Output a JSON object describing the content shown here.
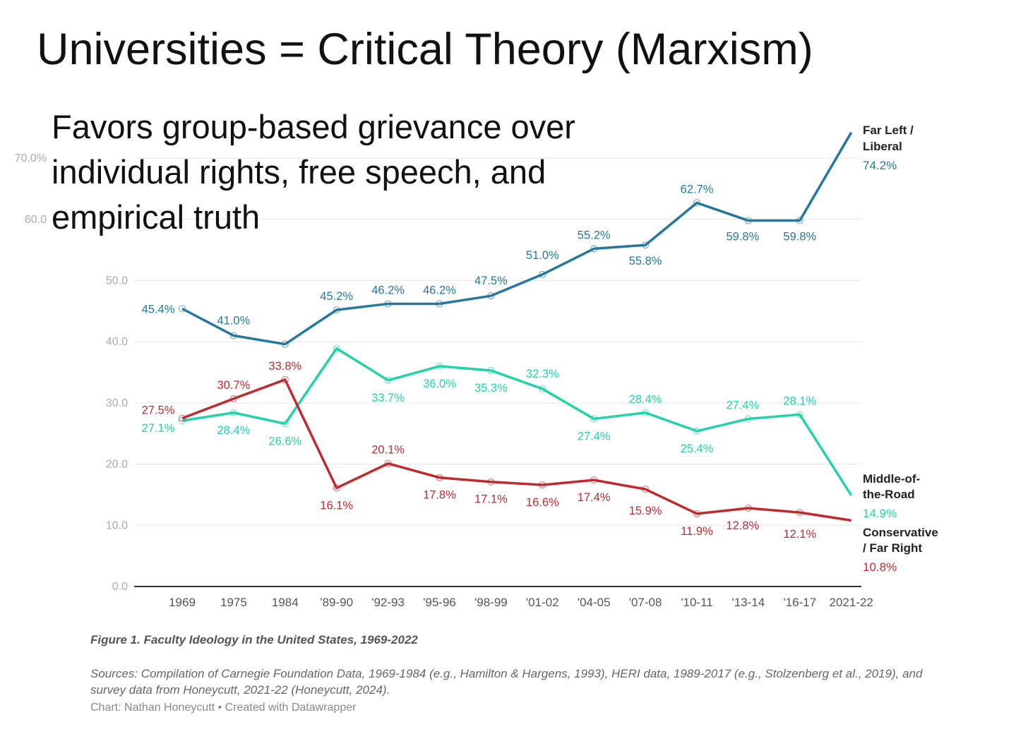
{
  "title": "Universities = Critical Theory (Marxism)",
  "subtitle": "Favors group-based grievance over individual rights, free speech, and empirical truth",
  "chart_data": {
    "type": "line",
    "title": "Figure 1. Faculty Ideology in the United States, 1969-2022",
    "categories": [
      "1969",
      "1975",
      "1984",
      "'89-90",
      "'92-93",
      "'95-96",
      "'98-99",
      "'01-02",
      "'04-05",
      "'07-08",
      "'10-11",
      "'13-14",
      "'16-17",
      "2021-22"
    ],
    "yticks": [
      "0.0",
      "10.0",
      "20.0",
      "30.0",
      "40.0",
      "50.0",
      "60.0",
      "70.0%"
    ],
    "ylim": [
      0,
      70
    ],
    "grid": true,
    "series": [
      {
        "name": "Far Left / Liberal",
        "name_lines": [
          "Far Left /",
          "Liberal"
        ],
        "end_label": "74.2%",
        "color": "#24789e",
        "values": [
          45.4,
          41.0,
          39.6,
          45.2,
          46.2,
          46.2,
          47.5,
          51.0,
          55.2,
          55.8,
          62.7,
          59.8,
          59.8,
          74.2
        ],
        "labels": [
          "45.4%",
          "41.0%",
          "",
          "45.2%",
          "46.2%",
          "46.2%",
          "47.5%",
          "51.0%",
          "55.2%",
          "55.8%",
          "62.7%",
          "59.8%",
          "59.8%",
          ""
        ]
      },
      {
        "name": "Middle-of-the-Road",
        "name_lines": [
          "Middle-of-",
          "the-Road"
        ],
        "end_label": "14.9%",
        "color": "#22d2a8",
        "values": [
          27.1,
          28.4,
          26.6,
          38.9,
          33.7,
          36.0,
          35.3,
          32.3,
          27.4,
          28.4,
          25.4,
          27.4,
          28.1,
          14.9
        ],
        "labels": [
          "27.1%",
          "28.4%",
          "26.6%",
          "",
          "33.7%",
          "36.0%",
          "35.3%",
          "32.3%",
          "27.4%",
          "28.4%",
          "25.4%",
          "27.4%",
          "28.1%",
          ""
        ]
      },
      {
        "name": "Conservative / Far Right",
        "name_lines": [
          "Conservative",
          "/ Far Right"
        ],
        "end_label": "10.8%",
        "color": "#c02a2e",
        "values": [
          27.5,
          30.7,
          33.8,
          16.1,
          20.1,
          17.8,
          17.1,
          16.6,
          17.4,
          15.9,
          11.9,
          12.8,
          12.1,
          10.8
        ],
        "labels": [
          "27.5%",
          "30.7%",
          "33.8%",
          "16.1%",
          "20.1%",
          "17.8%",
          "17.1%",
          "16.6%",
          "17.4%",
          "15.9%",
          "11.9%",
          "12.8%",
          "12.1%",
          ""
        ]
      }
    ],
    "sources": "Sources: Compilation of Carnegie Foundation Data, 1969-1984 (e.g., Hamilton & Hargens, 1993), HERI data, 1989-2017 (e.g., Stolzenberg et al., 2019), and survey data from Honeycutt, 2021-22 (Honeycutt, 2024).",
    "credit": "Chart: Nathan Honeycutt • Created with Datawrapper"
  }
}
